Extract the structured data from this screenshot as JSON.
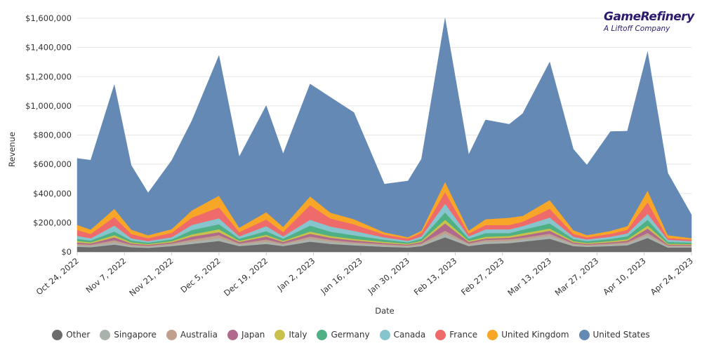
{
  "logo": {
    "name": "GameRefinery",
    "tagline": "A Liftoff Company",
    "color": "#2d1a6e"
  },
  "chart_data": {
    "type": "area",
    "stacked": true,
    "xlabel": "Date",
    "ylabel": "Revenue",
    "ylim": [
      0,
      1600000
    ],
    "y_ticks": [
      "$0",
      "$200,000",
      "$400,000",
      "$600,000",
      "$800,000",
      "$1,000,000",
      "$1,200,000",
      "$1,400,000",
      "$1,600,000"
    ],
    "x_ticks": [
      "Oct 24, 2022",
      "Nov 7, 2022",
      "Nov 21, 2022",
      "Dec 5, 2022",
      "Dec 19, 2022",
      "Jan 2, 2023",
      "Jan 16, 2023",
      "Jan 30, 2023",
      "Feb 13, 2023",
      "Feb 27, 2023",
      "Mar 13, 2023",
      "Mar 27, 2023",
      "Apr 10, 2023",
      "Apr 24, 2023"
    ],
    "grid": true,
    "legend_position": "bottom",
    "x": [
      "2022-10-24",
      "2022-10-28",
      "2022-11-04",
      "2022-11-09",
      "2022-11-14",
      "2022-11-21",
      "2022-11-27",
      "2022-12-05",
      "2022-12-11",
      "2022-12-19",
      "2022-12-24",
      "2023-01-01",
      "2023-01-07",
      "2023-01-14",
      "2023-01-23",
      "2023-01-30",
      "2023-02-03",
      "2023-02-10",
      "2023-02-17",
      "2023-02-22",
      "2023-03-01",
      "2023-03-05",
      "2023-03-13",
      "2023-03-20",
      "2023-03-24",
      "2023-03-31",
      "2023-04-05",
      "2023-04-11",
      "2023-04-17",
      "2023-04-24"
    ],
    "series": [
      {
        "name": "Other",
        "color": "#6b6b6b",
        "values": [
          35000,
          32000,
          50000,
          32000,
          28000,
          40000,
          55000,
          75000,
          40000,
          55000,
          40000,
          70000,
          55000,
          45000,
          35000,
          30000,
          40000,
          100000,
          40000,
          55000,
          60000,
          70000,
          90000,
          40000,
          35000,
          40000,
          45000,
          95000,
          30000,
          30000
        ]
      },
      {
        "name": "Singapore",
        "color": "#a9b3ac",
        "values": [
          10000,
          10000,
          15000,
          10000,
          8000,
          10000,
          15000,
          20000,
          10000,
          15000,
          10000,
          20000,
          15000,
          12000,
          10000,
          8000,
          10000,
          25000,
          10000,
          15000,
          15000,
          15000,
          20000,
          10000,
          8000,
          10000,
          12000,
          20000,
          8000,
          8000
        ]
      },
      {
        "name": "Australia",
        "color": "#c0a08c",
        "values": [
          10000,
          8000,
          15000,
          8000,
          6000,
          8000,
          15000,
          20000,
          8000,
          15000,
          8000,
          15000,
          12000,
          10000,
          8000,
          6000,
          8000,
          20000,
          8000,
          12000,
          12000,
          12000,
          15000,
          8000,
          6000,
          8000,
          10000,
          15000,
          6000,
          6000
        ]
      },
      {
        "name": "Japan",
        "color": "#b06b8c",
        "values": [
          10000,
          8000,
          20000,
          8000,
          6000,
          8000,
          20000,
          20000,
          10000,
          20000,
          10000,
          20000,
          15000,
          12000,
          8000,
          6000,
          10000,
          50000,
          10000,
          10000,
          10000,
          15000,
          20000,
          8000,
          6000,
          8000,
          10000,
          30000,
          6000,
          5000
        ]
      },
      {
        "name": "Italy",
        "color": "#c8c24a",
        "values": [
          10000,
          8000,
          15000,
          8000,
          6000,
          8000,
          15000,
          20000,
          8000,
          12000,
          8000,
          15000,
          12000,
          10000,
          8000,
          6000,
          8000,
          25000,
          8000,
          12000,
          12000,
          15000,
          15000,
          8000,
          6000,
          8000,
          10000,
          20000,
          6000,
          5000
        ]
      },
      {
        "name": "Germany",
        "color": "#4fb085",
        "values": [
          15000,
          12000,
          25000,
          12000,
          10000,
          12000,
          30000,
          35000,
          15000,
          25000,
          15000,
          40000,
          30000,
          25000,
          15000,
          10000,
          15000,
          50000,
          15000,
          25000,
          20000,
          25000,
          35000,
          15000,
          12000,
          15000,
          20000,
          40000,
          12000,
          10000
        ]
      },
      {
        "name": "Canada",
        "color": "#86c5cd",
        "values": [
          20000,
          15000,
          40000,
          15000,
          10000,
          15000,
          35000,
          40000,
          15000,
          35000,
          15000,
          40000,
          35000,
          30000,
          15000,
          10000,
          15000,
          60000,
          15000,
          25000,
          25000,
          25000,
          40000,
          15000,
          12000,
          15000,
          20000,
          40000,
          15000,
          10000
        ]
      },
      {
        "name": "France",
        "color": "#ef6b6b",
        "values": [
          40000,
          30000,
          60000,
          30000,
          20000,
          30000,
          50000,
          75000,
          30000,
          45000,
          30000,
          100000,
          55000,
          45000,
          20000,
          15000,
          25000,
          80000,
          20000,
          30000,
          30000,
          30000,
          60000,
          20000,
          15000,
          20000,
          25000,
          80000,
          12000,
          10000
        ]
      },
      {
        "name": "United Kingdom",
        "color": "#f7a627",
        "values": [
          35000,
          30000,
          55000,
          30000,
          20000,
          25000,
          50000,
          80000,
          30000,
          50000,
          35000,
          60000,
          40000,
          35000,
          15000,
          10000,
          15000,
          70000,
          20000,
          40000,
          50000,
          40000,
          60000,
          25000,
          15000,
          20000,
          25000,
          80000,
          20000,
          10000
        ]
      },
      {
        "name": "United States",
        "color": "#6489b5",
        "values": [
          455000,
          475000,
          850000,
          440000,
          290000,
          470000,
          615000,
          960000,
          485000,
          730000,
          500000,
          770000,
          790000,
          730000,
          330000,
          385000,
          490000,
          1120000,
          520000,
          680000,
          640000,
          700000,
          945000,
          555000,
          480000,
          680000,
          650000,
          950000,
          425000,
          160000
        ]
      }
    ]
  }
}
